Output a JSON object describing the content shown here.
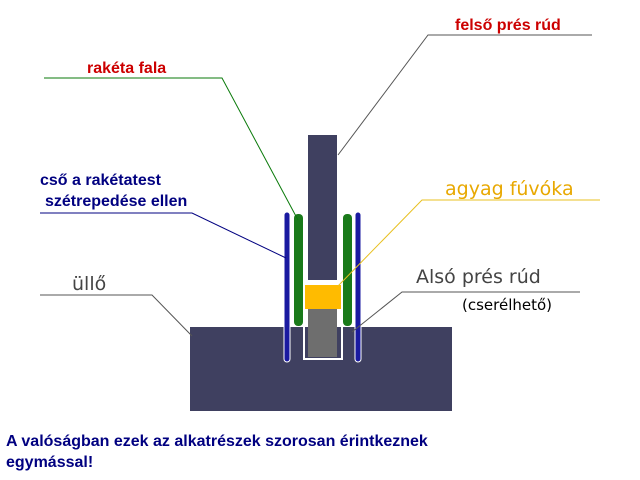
{
  "labels": {
    "upper_rod": "felső prés rúd",
    "rocket_wall": "rakéta fala",
    "tube_line1": "cső a rakétatest",
    "tube_line2": "szétrepedése ellen",
    "clay_nozzle": "agyag fúvóka",
    "lower_rod": "Alsó prés rúd",
    "replaceable": "(cserélhető)",
    "anvil": "üllő"
  },
  "note": {
    "line1": "A valóságban ezek az alkatrészek szorosan érintkeznek",
    "line2": "egymással!"
  },
  "colors": {
    "anvil": "#3f4060",
    "upper_rod": "#3f4060",
    "lower_rod": "#6e6e6e",
    "clay_nozzle": "#ffbb00",
    "rocket_wall": "#1a7a1a",
    "tube": "#1a1aa0",
    "text_blue": "#000080",
    "text_red": "#cc0000",
    "text_gold": "#e8a800",
    "text_gray": "#444444",
    "leader_green": "#0a7a0a",
    "leader_gold": "#e8c020",
    "leader_gray": "#555555"
  }
}
